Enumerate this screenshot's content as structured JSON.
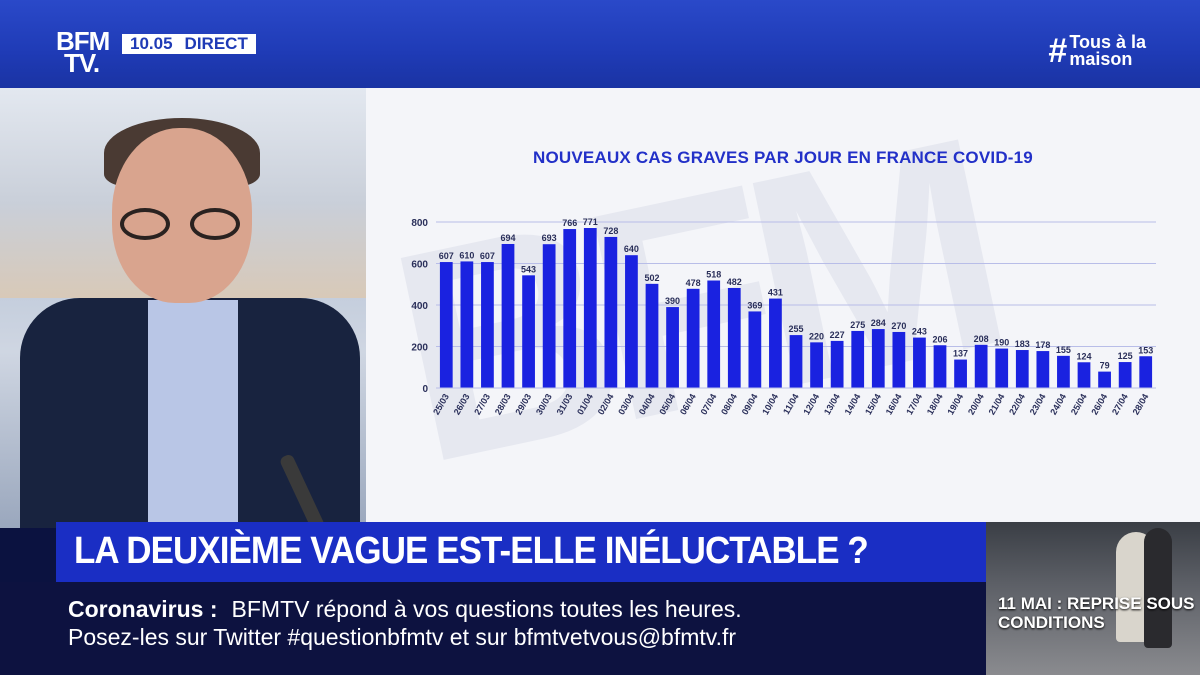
{
  "header": {
    "logo_line1": "BFM",
    "logo_line2": "TV.",
    "time": "10.05",
    "direct": "DIRECT",
    "hashtag_symbol": "#",
    "hashtag_line1": "Tous à la",
    "hashtag_line2": "maison"
  },
  "headline": "LA DEUXIÈME VAGUE EST-ELLE INÉLUCTABLE ?",
  "ticker": {
    "topic": "Coronavirus :",
    "line1": "BFMTV répond à vos questions toutes les heures.",
    "line2": "Posez-les sur Twitter #questionbfmtv et sur bfmtvetvous@bfmtv.fr"
  },
  "thumbnail": {
    "line1": "11 MAI : REPRISE SOUS",
    "line2": "CONDITIONS"
  },
  "colors": {
    "bar": "#1a22e0",
    "title": "#2230c8",
    "brand_blue": "#1a2ec4"
  },
  "chart_data": {
    "type": "bar",
    "title": "NOUVEAUX CAS GRAVES PAR JOUR EN FRANCE COVID-19",
    "categories": [
      "25/03",
      "26/03",
      "27/03",
      "28/03",
      "29/03",
      "30/03",
      "31/03",
      "01/04",
      "02/04",
      "03/04",
      "04/04",
      "05/04",
      "06/04",
      "07/04",
      "08/04",
      "09/04",
      "10/04",
      "11/04",
      "12/04",
      "13/04",
      "14/04",
      "15/04",
      "16/04",
      "17/04",
      "18/04",
      "19/04",
      "20/04",
      "21/04",
      "22/04",
      "23/04",
      "24/04",
      "25/04",
      "26/04",
      "27/04",
      "28/04"
    ],
    "values": [
      607,
      610,
      607,
      694,
      543,
      693,
      766,
      771,
      728,
      640,
      502,
      390,
      478,
      518,
      482,
      369,
      431,
      255,
      220,
      227,
      275,
      284,
      270,
      243,
      206,
      137,
      208,
      190,
      183,
      178,
      155,
      124,
      79,
      125,
      153
    ],
    "ylim": [
      0,
      800
    ],
    "yticks": [
      0,
      200,
      400,
      600,
      800
    ],
    "grid": true
  }
}
